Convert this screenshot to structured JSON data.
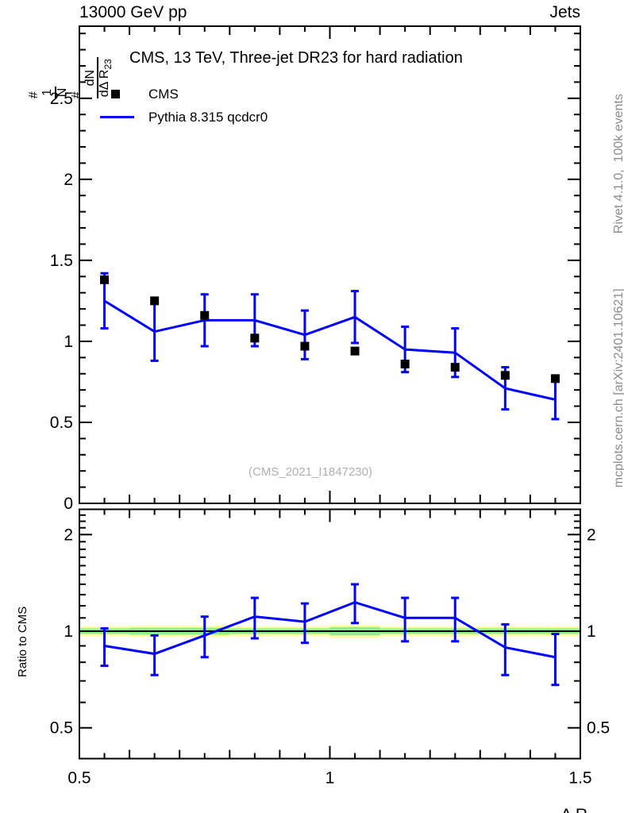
{
  "header": {
    "left": "13000 GeV pp",
    "right": "Jets"
  },
  "title": "CMS, 13 TeV, Three-jet DR23 for hard radiation",
  "legend": {
    "cms_label": "CMS",
    "mc_label": "Pythia 8.315 qcdcr0"
  },
  "watermark": "(CMS_2021_I1847230)",
  "side_texts": {
    "top_right": "Rivet 4.1.0,  100k events",
    "bottom_right": "mcplots.cern.ch [arXiv:2401.10621]"
  },
  "axes": {
    "main_y_label_parts": {
      "hash1": "#",
      "frac1_num": "1",
      "frac1_den": "N",
      "hash2": "#",
      "frac2_num": "dN",
      "frac2_den_prefix": "dΔ R",
      "frac2_den_sub": "23"
    },
    "ratio_y_label": "Ratio to CMS",
    "x_label_prefix": "Δ R",
    "x_label_sub": "23",
    "main_y_ticks": [
      {
        "v": 0,
        "label": "0"
      },
      {
        "v": 0.5,
        "label": "0.5"
      },
      {
        "v": 1,
        "label": "1"
      },
      {
        "v": 1.5,
        "label": "1.5"
      },
      {
        "v": 2,
        "label": "2"
      },
      {
        "v": 2.5,
        "label": "2.5"
      }
    ],
    "ratio_y_ticks": [
      {
        "v": 0.5,
        "label": "0.5"
      },
      {
        "v": 1,
        "label": "1"
      },
      {
        "v": 2,
        "label": "2"
      }
    ],
    "x_ticks": [
      {
        "v": 0.5,
        "label": "0.5"
      },
      {
        "v": 1,
        "label": "1"
      },
      {
        "v": 1.5,
        "label": "1.5"
      }
    ]
  },
  "colors": {
    "mc_line": "#0000ff",
    "data_marker": "#000000",
    "band_green": "#8df08d",
    "band_yellow": "#ffff9b",
    "side_text": "#8c8c8c",
    "watermark": "#b0b0b0"
  },
  "chart_data": [
    {
      "type": "line",
      "panel": "main",
      "title": "CMS, 13 TeV, Three-jet DR23 for hard radiation",
      "xlabel": "ΔR23",
      "ylabel": "1/N dN/dΔR23",
      "xlim": [
        0.5,
        1.5
      ],
      "ylim": [
        0,
        2.95
      ],
      "grid": false,
      "legend_position": "top-left",
      "x": [
        0.55,
        0.65,
        0.75,
        0.85,
        0.95,
        1.05,
        1.15,
        1.25,
        1.35,
        1.45
      ],
      "series": [
        {
          "name": "CMS",
          "style": "black-squares",
          "values": [
            1.38,
            1.25,
            1.16,
            1.02,
            0.97,
            0.94,
            0.86,
            0.84,
            0.79,
            0.77
          ]
        },
        {
          "name": "Pythia 8.315 qcdcr0",
          "style": "blue-line-error-bars",
          "values": [
            1.25,
            1.06,
            1.13,
            1.13,
            1.04,
            1.15,
            0.95,
            0.93,
            0.71,
            0.64
          ],
          "errors": [
            0.17,
            0.18,
            0.16,
            0.16,
            0.15,
            0.16,
            0.14,
            0.15,
            0.13,
            0.12
          ]
        }
      ]
    },
    {
      "type": "line",
      "panel": "ratio",
      "ylabel": "Ratio to CMS",
      "yscale": "log",
      "xlim": [
        0.5,
        1.5
      ],
      "ylim": [
        0.4,
        2.4
      ],
      "x": [
        0.55,
        0.65,
        0.75,
        0.85,
        0.95,
        1.05,
        1.15,
        1.25,
        1.35,
        1.45
      ],
      "ratio": [
        0.9,
        0.85,
        0.97,
        1.11,
        1.07,
        1.23,
        1.1,
        1.1,
        0.89,
        0.83
      ],
      "ratio_err": [
        0.12,
        0.12,
        0.14,
        0.16,
        0.15,
        0.17,
        0.17,
        0.17,
        0.16,
        0.15
      ],
      "band_center": 1.0,
      "band_yellow_halfwidth": [
        0.035,
        0.04,
        0.04,
        0.035,
        0.035,
        0.045,
        0.035,
        0.035,
        0.035,
        0.035
      ],
      "band_green_halfwidth": [
        0.02,
        0.025,
        0.025,
        0.02,
        0.02,
        0.03,
        0.02,
        0.02,
        0.02,
        0.02
      ]
    }
  ]
}
